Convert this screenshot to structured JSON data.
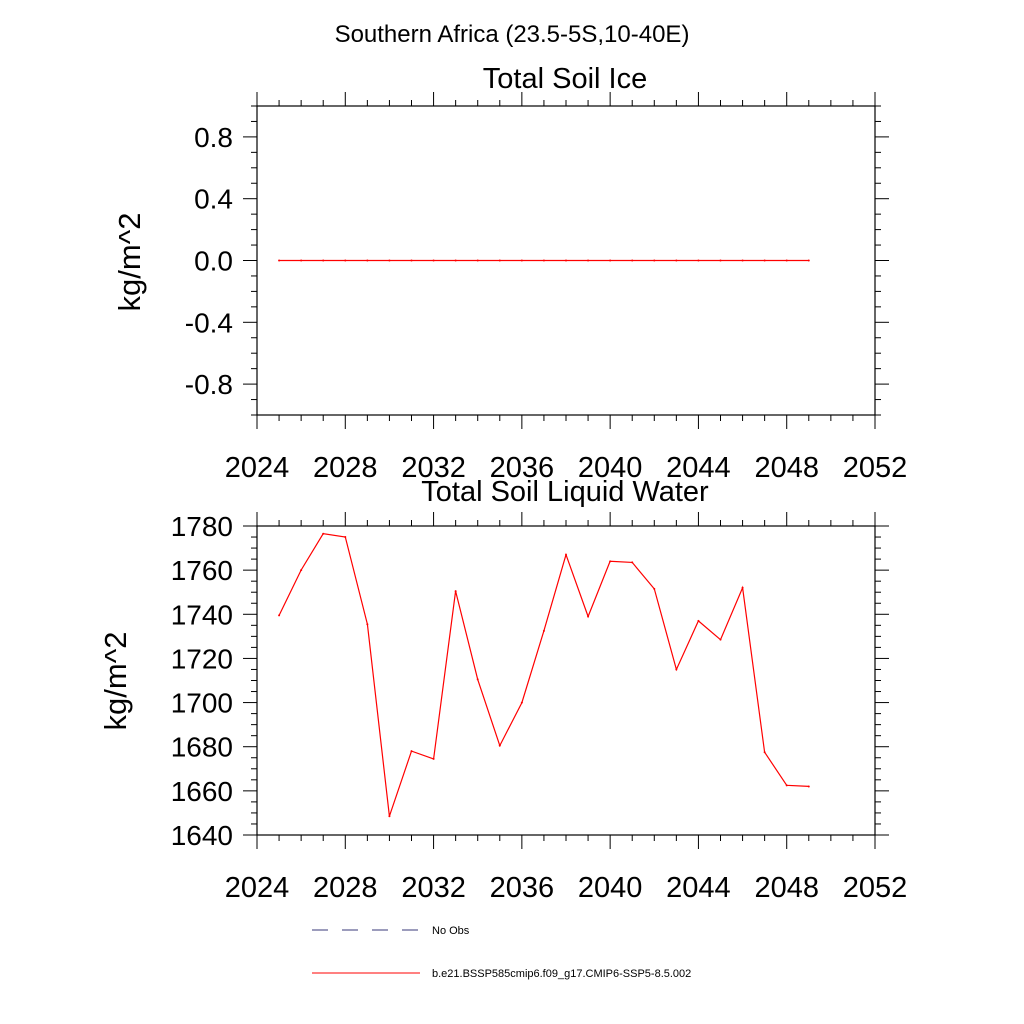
{
  "page_title": "Southern Africa (23.5-5S,10-40E)",
  "chart_data": [
    {
      "type": "line",
      "title": "Total Soil Ice",
      "xlabel": "",
      "ylabel": "kg/m^2",
      "xlim": [
        2024,
        2052
      ],
      "ylim": [
        -1.0,
        1.0
      ],
      "x_ticks": [
        2024,
        2028,
        2032,
        2036,
        2040,
        2044,
        2048,
        2052
      ],
      "x_tick_labels": [
        "2024",
        "2028",
        "2032",
        "2036",
        "2040",
        "2044",
        "2048",
        "2052"
      ],
      "y_ticks": [
        -0.8,
        -0.4,
        0.0,
        0.4,
        0.8
      ],
      "y_tick_labels": [
        "-0.8",
        "-0.4",
        "0.0",
        "0.4",
        "0.8"
      ],
      "series": [
        {
          "color": "#ff0000",
          "x": [
            2025,
            2026,
            2027,
            2028,
            2029,
            2030,
            2031,
            2032,
            2033,
            2034,
            2035,
            2036,
            2037,
            2038,
            2039,
            2040,
            2041,
            2042,
            2043,
            2044,
            2045,
            2046,
            2047,
            2048,
            2049
          ],
          "values": [
            0,
            0,
            0,
            0,
            0,
            0,
            0,
            0,
            0,
            0,
            0,
            0,
            0,
            0,
            0,
            0,
            0,
            0,
            0,
            0,
            0,
            0,
            0,
            0,
            0
          ]
        }
      ]
    },
    {
      "type": "line",
      "title": "Total Soil Liquid Water",
      "xlabel": "",
      "ylabel": "kg/m^2",
      "xlim": [
        2024,
        2052
      ],
      "ylim": [
        1640,
        1780
      ],
      "x_ticks": [
        2024,
        2028,
        2032,
        2036,
        2040,
        2044,
        2048,
        2052
      ],
      "x_tick_labels": [
        "2024",
        "2028",
        "2032",
        "2036",
        "2040",
        "2044",
        "2048",
        "2052"
      ],
      "y_ticks": [
        1640,
        1660,
        1680,
        1700,
        1720,
        1740,
        1760,
        1780
      ],
      "y_tick_labels": [
        "1640",
        "1660",
        "1680",
        "1700",
        "1720",
        "1740",
        "1760",
        "1780"
      ],
      "series": [
        {
          "color": "#ff0000",
          "x": [
            2025,
            2026,
            2027,
            2028,
            2029,
            2030,
            2031,
            2032,
            2033,
            2034,
            2035,
            2036,
            2037,
            2038,
            2039,
            2040,
            2041,
            2042,
            2043,
            2044,
            2045,
            2046,
            2047,
            2048,
            2049
          ],
          "values": [
            1739.5,
            1760,
            1776.5,
            1775,
            1735.5,
            1648.5,
            1678,
            1674.5,
            1750.5,
            1710.5,
            1680.5,
            1700,
            1732.5,
            1767,
            1739,
            1764,
            1763.5,
            1751.5,
            1715,
            1737,
            1728.5,
            1752,
            1677.5,
            1662.5,
            1662
          ]
        }
      ]
    }
  ],
  "legend": {
    "placement": "bottom",
    "entries": [
      {
        "label": "No Obs",
        "color": "#3a3a7a",
        "style": "dashed"
      },
      {
        "label": "b.e21.BSSP585cmip6.f09_g17.CMIP6-SSP5-8.5.002",
        "color": "#ff0000",
        "style": "solid"
      }
    ]
  }
}
